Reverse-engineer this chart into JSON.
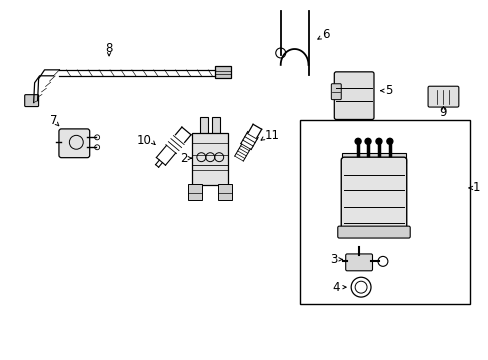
{
  "background_color": "#ffffff",
  "line_color": "#000000",
  "text_color": "#000000",
  "font_size": 8.5,
  "fig_width": 4.89,
  "fig_height": 3.6,
  "dpi": 100
}
